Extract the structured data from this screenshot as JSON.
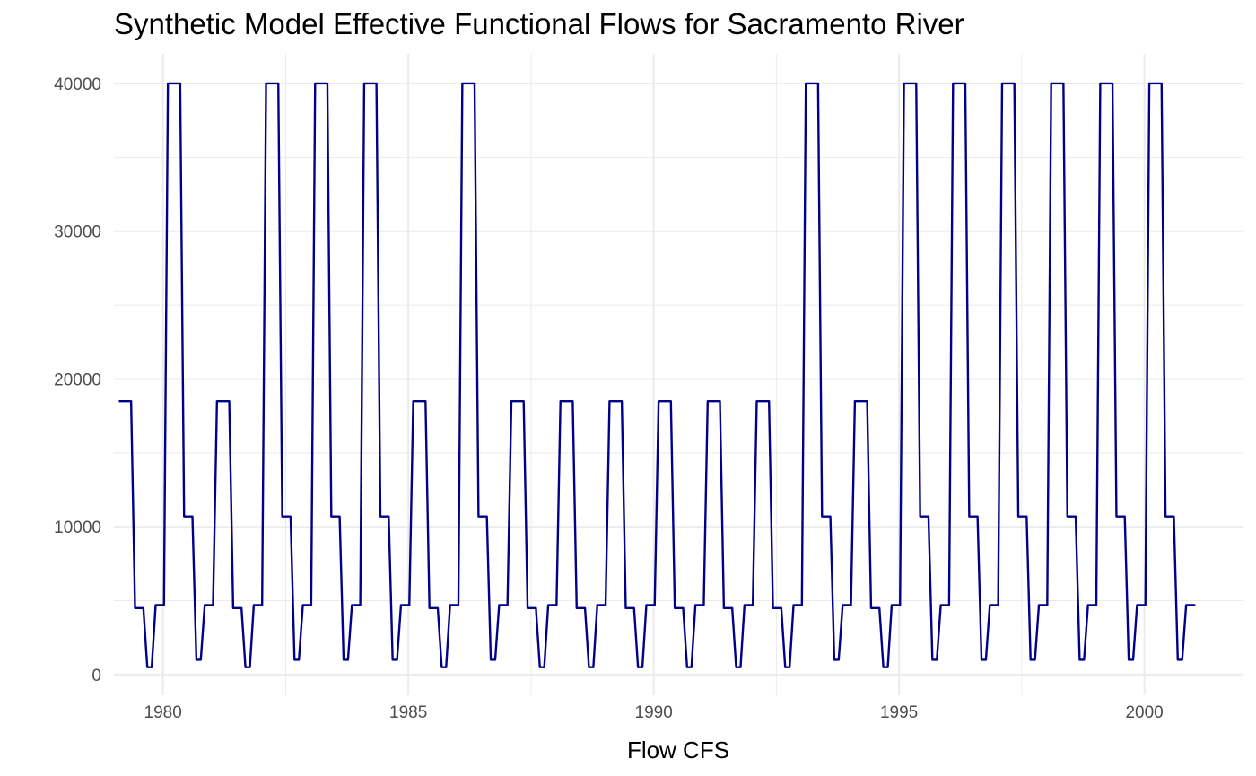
{
  "chart_data": {
    "type": "line",
    "title": "Synthetic Model Effective Functional Flows for Sacramento River",
    "xlabel": "Flow CFS",
    "ylabel": "",
    "xlim": [
      1979.0,
      2002.0
    ],
    "ylim": [
      -1400,
      42000
    ],
    "x_ticks": [
      1980,
      1985,
      1990,
      1995,
      2000
    ],
    "x_tick_labels": [
      "1980",
      "1985",
      "1990",
      "1995",
      "2000"
    ],
    "y_ticks": [
      0,
      10000,
      20000,
      30000,
      40000
    ],
    "y_tick_labels": [
      "0",
      "10000",
      "20000",
      "30000",
      "40000"
    ],
    "grid": true,
    "legend": "none",
    "line_color": "#00008B",
    "grid_color": "#EBEBEB",
    "series": [
      {
        "year_types": [
          "dry",
          "wet",
          "dry",
          "wet",
          "wet",
          "wet",
          "dry",
          "wet",
          "dry",
          "dry",
          "dry",
          "dry",
          "dry",
          "dry",
          "wet",
          "dry",
          "wet",
          "wet",
          "wet",
          "wet",
          "wet",
          "wet"
        ],
        "levels": {
          "dry": [
            18500,
            18500,
            4500,
            4500,
            500,
            500,
            4700,
            4700
          ],
          "wet": [
            40000,
            40000,
            10700,
            10700,
            1000,
            1000,
            4700,
            4700
          ]
        },
        "year_offsets": [
          0.0,
          0.25,
          0.33,
          0.5,
          0.58,
          0.67,
          0.75,
          0.92
        ],
        "first_year": 1979.1,
        "end_x": 2001.0,
        "end_y": 4700
      }
    ]
  }
}
